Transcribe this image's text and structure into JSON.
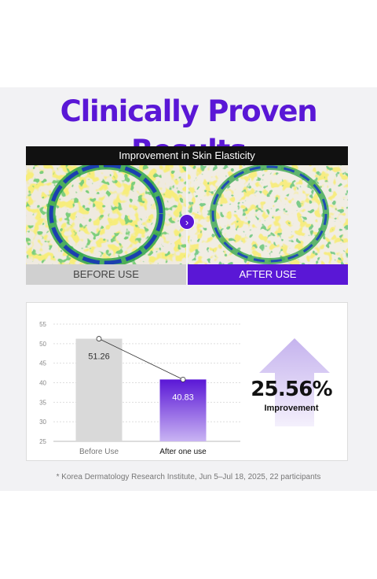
{
  "headline": "Clinically Proven Results",
  "comparison": {
    "title": "Improvement in Skin Elasticity",
    "before_label": "BEFORE USE",
    "after_label": "AFTER USE",
    "arrow_glyph": "›"
  },
  "chart_data": {
    "type": "bar",
    "categories": [
      "Before Use",
      "After one use"
    ],
    "values": [
      51.26,
      40.83
    ],
    "value_labels": [
      "51.26",
      "40.83"
    ],
    "ylim": [
      25,
      55
    ],
    "yticks": [
      55,
      50,
      45,
      40,
      35,
      30,
      25
    ],
    "grid": true,
    "colors": [
      "#d9d9d9",
      "#5a17d6"
    ]
  },
  "result": {
    "value": "25.56%",
    "label": "Improvement"
  },
  "footnote": "* Korea Dermatology Research Institute, Jun 5–Jul 18, 2025, 22 participants",
  "colors": {
    "brand": "#5a17d6",
    "arrow": "#c9b8ef"
  }
}
